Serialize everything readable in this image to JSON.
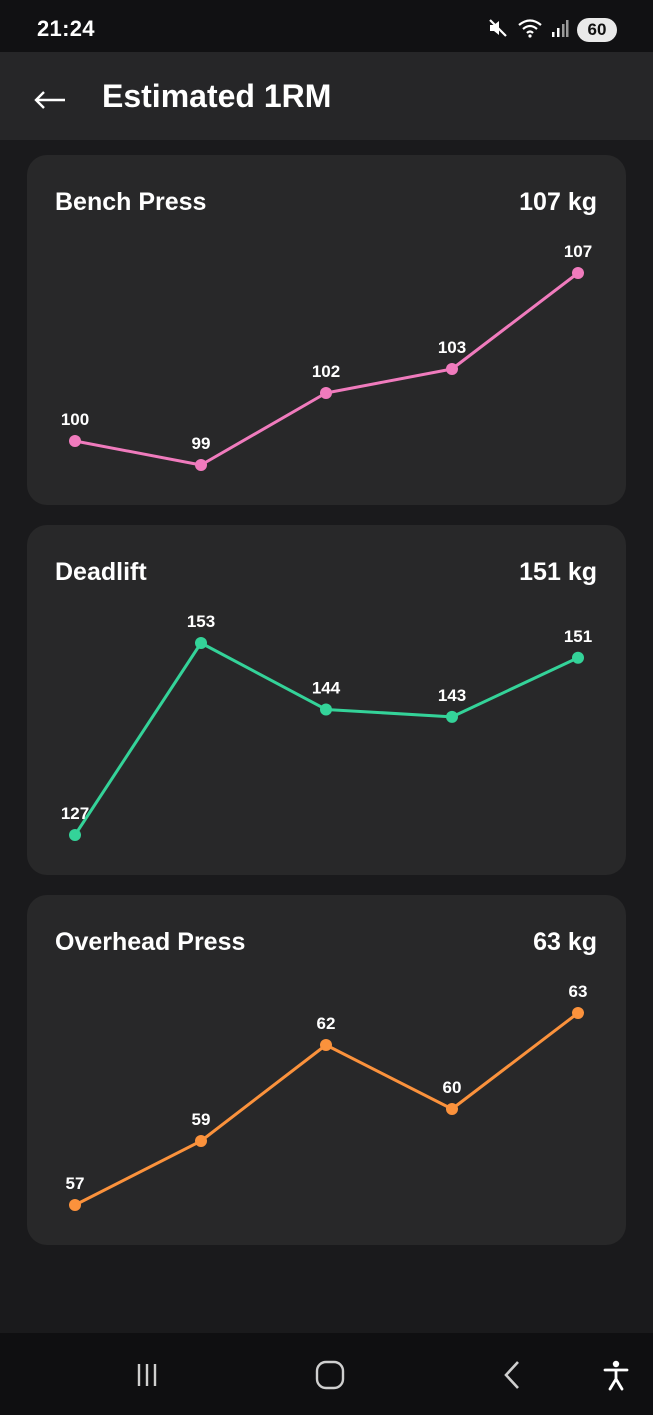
{
  "status_bar": {
    "time": "21:24",
    "battery": "60",
    "icons": [
      "mute-icon",
      "wifi-icon",
      "signal-icon",
      "battery-icon"
    ]
  },
  "app_bar": {
    "title": "Estimated 1RM",
    "back_icon": "back-arrow-icon"
  },
  "cards": [
    {
      "title": "Bench Press",
      "value": "107 kg",
      "color": "#f07bbd"
    },
    {
      "title": "Deadlift",
      "value": "151 kg",
      "color": "#34d399"
    },
    {
      "title": "Overhead Press",
      "value": "63 kg",
      "color": "#fb923c"
    }
  ],
  "chart_data": [
    {
      "type": "line",
      "title": "Bench Press",
      "series": [
        {
          "values": [
            100,
            99,
            102,
            103,
            107
          ]
        }
      ]
    },
    {
      "type": "line",
      "title": "Deadlift",
      "series": [
        {
          "values": [
            127,
            153,
            144,
            143,
            151
          ]
        }
      ]
    },
    {
      "type": "line",
      "title": "Overhead Press",
      "series": [
        {
          "values": [
            57,
            59,
            62,
            60,
            63
          ]
        }
      ]
    }
  ],
  "nav_bar": {
    "icons": [
      "recent-apps-icon",
      "home-icon",
      "back-icon",
      "accessibility-icon"
    ]
  }
}
